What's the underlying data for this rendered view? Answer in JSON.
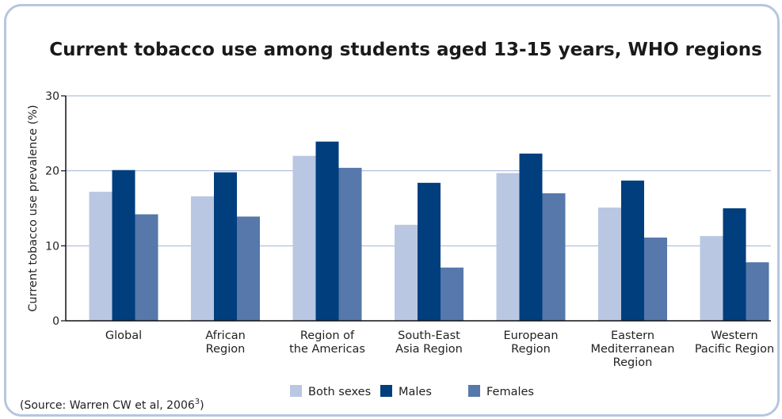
{
  "chart_data": {
    "type": "bar",
    "title": "Current tobacco use among students aged 13-15 years, WHO regions",
    "ylabel": "Current tobacco use prevalence (%)",
    "xlabel": "",
    "ylim": [
      0,
      30
    ],
    "yticks": [
      "0",
      "10",
      "20",
      "30"
    ],
    "grid": true,
    "legend_position": "bottom",
    "categories": [
      [
        "Global"
      ],
      [
        "African",
        "Region"
      ],
      [
        "Region of",
        "the Americas"
      ],
      [
        "South-East",
        "Asia Region"
      ],
      [
        "European",
        "Region"
      ],
      [
        "Eastern",
        "Mediterranean",
        "Region"
      ],
      [
        "Western",
        "Pacific Region"
      ]
    ],
    "series": [
      {
        "name": "Both sexes",
        "color": "#b9c7e2",
        "values": [
          17.2,
          16.6,
          22.0,
          12.8,
          19.7,
          15.1,
          11.3
        ]
      },
      {
        "name": "Males",
        "color": "#003e7e",
        "values": [
          20.1,
          19.8,
          23.9,
          18.4,
          22.3,
          18.7,
          15.0
        ]
      },
      {
        "name": "Females",
        "color": "#5678aa",
        "values": [
          14.2,
          13.9,
          20.4,
          7.1,
          17.0,
          11.1,
          7.8
        ]
      }
    ],
    "source": "(Source: Warren CW et al, 2006",
    "source_superscript": "3",
    "source_suffix": ")"
  },
  "colors": {
    "frame_border": "#b6c6de",
    "gridline": "#9fb3d4"
  }
}
